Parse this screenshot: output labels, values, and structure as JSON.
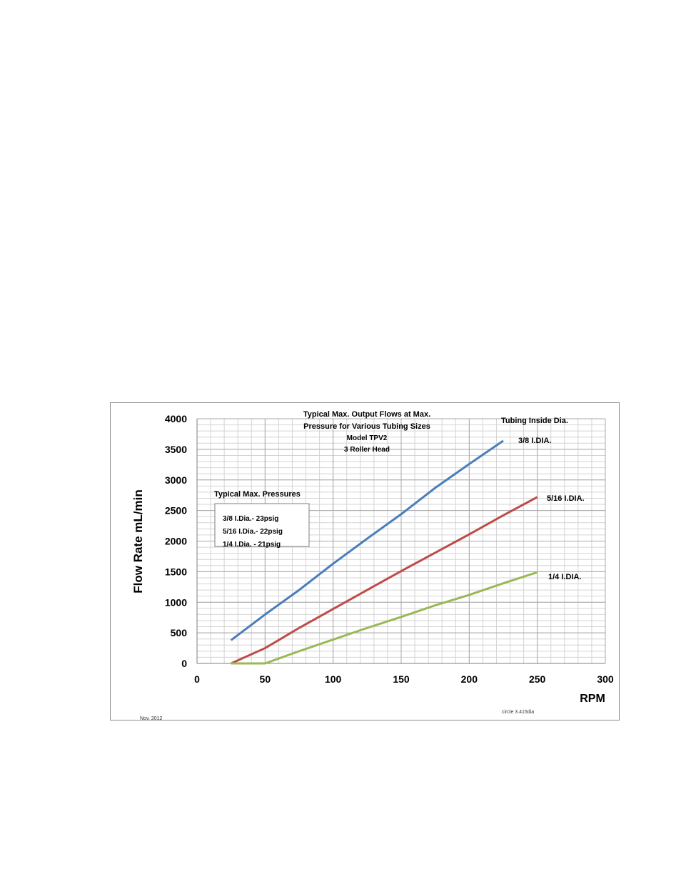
{
  "chart_data": {
    "type": "line",
    "title": [
      "Typical Max. Output Flows  at Max.",
      "Pressure for  Various  Tubing Sizes"
    ],
    "subtitle": [
      "Model TPV2",
      "3 Roller Head"
    ],
    "xlabel": "RPM",
    "ylabel": "Flow Rate mL/min",
    "xlim": [
      0,
      300
    ],
    "ylim": [
      0,
      4000
    ],
    "x_ticks": [
      0,
      50,
      100,
      150,
      200,
      250,
      300
    ],
    "y_ticks": [
      0,
      500,
      1000,
      1500,
      2000,
      2500,
      3000,
      3500,
      4000
    ],
    "grid": true,
    "legend_title": "Tubing Inside Dia.",
    "series": [
      {
        "name": "3/8 I.DIA.",
        "color": "#4a7ebb",
        "x": [
          25,
          50,
          75,
          100,
          125,
          150,
          175,
          200,
          225
        ],
        "y": [
          380,
          800,
          1200,
          1630,
          2040,
          2440,
          2870,
          3260,
          3640
        ]
      },
      {
        "name": "5/16 I.DIA.",
        "color": "#be4b48",
        "x": [
          25,
          50,
          75,
          100,
          125,
          150,
          175,
          200,
          225,
          250
        ],
        "y": [
          0,
          250,
          580,
          890,
          1200,
          1510,
          1810,
          2110,
          2420,
          2720
        ]
      },
      {
        "name": "1/4 I.DIA.",
        "color": "#98b954",
        "x": [
          25,
          50,
          75,
          100,
          125,
          150,
          175,
          200,
          225,
          250
        ],
        "y": [
          0,
          0,
          200,
          390,
          580,
          760,
          950,
          1120,
          1310,
          1490
        ]
      }
    ],
    "pressure_box": {
      "title": "Typical Max. Pressures",
      "lines": [
        "3/8   I.Dia.- 23psig",
        "5/16 I.Dia.-  22psig",
        "1/4   I.Dia. - 21psig"
      ]
    },
    "footer_left": "Nov. 2012",
    "footer_right": "circle  3.415dia"
  }
}
